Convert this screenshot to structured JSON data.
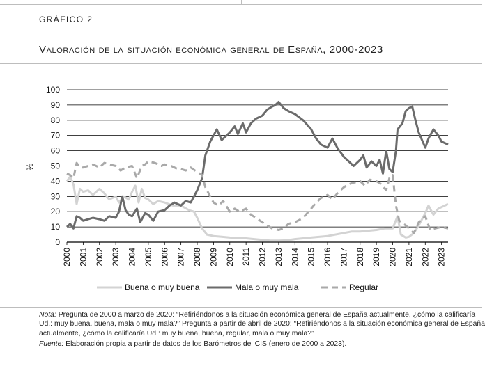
{
  "header": {
    "label": "Gráfico 2",
    "title": "Valoración de la situación económica general de España, 2000-2023"
  },
  "note": {
    "nota_label": "Nota:",
    "nota_text": " Pregunta de 2000 a marzo de 2020: “Refiriéndonos a la situación económica general de España actualmente, ¿cómo la calificaría Ud.: muy buena, buena, mala o muy mala?” Pregunta a partir de abril de 2020: “Refiriéndonos a la situación económica general de España actualmente, ¿cómo la calificaría Ud.: muy buena, buena, regular, mala o muy mala?”",
    "fuente_label": "Fuente:",
    "fuente_text": " Elaboración propia a partir de datos de los Barómetros del CIS (enero de 2000 a 2023)."
  },
  "chart_data": {
    "type": "line",
    "ylabel": "%",
    "xlabel": "",
    "ylim": [
      0,
      100
    ],
    "yticks": [
      0,
      10,
      20,
      30,
      40,
      50,
      60,
      70,
      80,
      90,
      100
    ],
    "xlim": [
      2000,
      2023.4
    ],
    "xticks": [
      "2000",
      "2001",
      "2002",
      "2003",
      "2004",
      "2005",
      "2006",
      "2007",
      "2008",
      "2009",
      "2010",
      "2011",
      "2012",
      "2013",
      "2014",
      "2015",
      "2016",
      "2017",
      "2018",
      "2019",
      "2020",
      "2021",
      "2022",
      "2023"
    ],
    "grid": "horizontal",
    "legend_position": "bottom",
    "colors": {
      "buena": "#d3d3d3",
      "mala": "#6b6b6b",
      "regular": "#a9a9a9",
      "grid": "#000000"
    },
    "series": [
      {
        "name": "Buena o muy buena",
        "style": "solid-light",
        "points": [
          [
            2000,
            40
          ],
          [
            2000.2,
            43
          ],
          [
            2000.4,
            38
          ],
          [
            2000.6,
            25
          ],
          [
            2000.8,
            35
          ],
          [
            2001,
            33
          ],
          [
            2001.3,
            34
          ],
          [
            2001.6,
            31
          ],
          [
            2002,
            35
          ],
          [
            2002.3,
            32
          ],
          [
            2002.6,
            28
          ],
          [
            2003,
            30
          ],
          [
            2003.2,
            26
          ],
          [
            2003.5,
            30
          ],
          [
            2003.8,
            28
          ],
          [
            2004,
            33
          ],
          [
            2004.2,
            37
          ],
          [
            2004.4,
            26
          ],
          [
            2004.6,
            35
          ],
          [
            2004.8,
            29
          ],
          [
            2005,
            28
          ],
          [
            2005.3,
            25
          ],
          [
            2005.6,
            27
          ],
          [
            2006,
            26
          ],
          [
            2006.5,
            24
          ],
          [
            2007,
            24
          ],
          [
            2007.5,
            21
          ],
          [
            2007.8,
            20
          ],
          [
            2008,
            16
          ],
          [
            2008.3,
            9
          ],
          [
            2008.6,
            5
          ],
          [
            2009,
            4
          ],
          [
            2009.5,
            3.5
          ],
          [
            2010,
            3
          ],
          [
            2011,
            2.5
          ],
          [
            2012,
            1.5
          ],
          [
            2012.5,
            1
          ],
          [
            2013,
            1
          ],
          [
            2013.5,
            1.2
          ],
          [
            2014,
            2
          ],
          [
            2015,
            3
          ],
          [
            2016,
            4
          ],
          [
            2017,
            6
          ],
          [
            2017.5,
            7
          ],
          [
            2018,
            7
          ],
          [
            2019,
            8
          ],
          [
            2019.5,
            9
          ],
          [
            2020,
            9
          ],
          [
            2020.3,
            17
          ],
          [
            2020.5,
            5
          ],
          [
            2020.8,
            3
          ],
          [
            2021,
            3.5
          ],
          [
            2021.3,
            6
          ],
          [
            2021.6,
            11
          ],
          [
            2022,
            19
          ],
          [
            2022.2,
            24
          ],
          [
            2022.5,
            18
          ],
          [
            2022.8,
            22
          ],
          [
            2023,
            23
          ],
          [
            2023.4,
            25
          ]
        ]
      },
      {
        "name": "Mala o muy mala",
        "style": "solid-dark",
        "points": [
          [
            2000,
            10
          ],
          [
            2000.2,
            12
          ],
          [
            2000.4,
            9
          ],
          [
            2000.6,
            17
          ],
          [
            2000.8,
            16
          ],
          [
            2001,
            14
          ],
          [
            2001.3,
            15
          ],
          [
            2001.6,
            16
          ],
          [
            2002,
            15
          ],
          [
            2002.3,
            14
          ],
          [
            2002.6,
            17
          ],
          [
            2003,
            16
          ],
          [
            2003.2,
            20
          ],
          [
            2003.4,
            30
          ],
          [
            2003.6,
            21
          ],
          [
            2003.8,
            18
          ],
          [
            2004,
            17
          ],
          [
            2004.3,
            22
          ],
          [
            2004.5,
            13
          ],
          [
            2004.8,
            19
          ],
          [
            2005,
            18
          ],
          [
            2005.3,
            14
          ],
          [
            2005.6,
            20
          ],
          [
            2006,
            21
          ],
          [
            2006.3,
            24
          ],
          [
            2006.6,
            26
          ],
          [
            2007,
            24
          ],
          [
            2007.3,
            27
          ],
          [
            2007.6,
            26
          ],
          [
            2008,
            34
          ],
          [
            2008.3,
            42
          ],
          [
            2008.5,
            57
          ],
          [
            2008.8,
            66
          ],
          [
            2009,
            70
          ],
          [
            2009.2,
            74
          ],
          [
            2009.5,
            67
          ],
          [
            2010,
            72
          ],
          [
            2010.3,
            76
          ],
          [
            2010.5,
            71
          ],
          [
            2010.8,
            78
          ],
          [
            2011,
            72
          ],
          [
            2011.3,
            78
          ],
          [
            2011.6,
            81
          ],
          [
            2012,
            83
          ],
          [
            2012.3,
            87
          ],
          [
            2012.6,
            89
          ],
          [
            2012.8,
            90
          ],
          [
            2013,
            92
          ],
          [
            2013.3,
            88
          ],
          [
            2013.6,
            86
          ],
          [
            2014,
            84
          ],
          [
            2014.5,
            80
          ],
          [
            2015,
            74
          ],
          [
            2015.3,
            68
          ],
          [
            2015.6,
            64
          ],
          [
            2016,
            62
          ],
          [
            2016.3,
            68
          ],
          [
            2016.6,
            62
          ],
          [
            2017,
            56
          ],
          [
            2017.3,
            53
          ],
          [
            2017.6,
            50
          ],
          [
            2018,
            54
          ],
          [
            2018.2,
            57
          ],
          [
            2018.4,
            49
          ],
          [
            2018.7,
            53
          ],
          [
            2019,
            50
          ],
          [
            2019.2,
            54
          ],
          [
            2019.4,
            45
          ],
          [
            2019.6,
            60
          ],
          [
            2019.8,
            48
          ],
          [
            2020,
            46
          ],
          [
            2020.2,
            60
          ],
          [
            2020.3,
            74
          ],
          [
            2020.6,
            78
          ],
          [
            2020.8,
            86
          ],
          [
            2021,
            88
          ],
          [
            2021.2,
            89
          ],
          [
            2021.4,
            80
          ],
          [
            2021.6,
            72
          ],
          [
            2022,
            62
          ],
          [
            2022.2,
            68
          ],
          [
            2022.5,
            74
          ],
          [
            2022.8,
            70
          ],
          [
            2023,
            66
          ],
          [
            2023.4,
            64
          ]
        ]
      },
      {
        "name": "Regular",
        "style": "dashed",
        "points": [
          [
            2000,
            45
          ],
          [
            2000.2,
            44
          ],
          [
            2000.4,
            42
          ],
          [
            2000.6,
            52
          ],
          [
            2000.8,
            49
          ],
          [
            2001,
            49
          ],
          [
            2001.3,
            50
          ],
          [
            2001.6,
            51
          ],
          [
            2002,
            49
          ],
          [
            2002.3,
            52
          ],
          [
            2002.6,
            51
          ],
          [
            2003,
            50
          ],
          [
            2003.3,
            47
          ],
          [
            2003.6,
            49
          ],
          [
            2004,
            50
          ],
          [
            2004.3,
            42
          ],
          [
            2004.6,
            50
          ],
          [
            2004.8,
            51
          ],
          [
            2005,
            53
          ],
          [
            2005.4,
            52
          ],
          [
            2005.8,
            50
          ],
          [
            2006,
            51
          ],
          [
            2006.4,
            50
          ],
          [
            2006.8,
            48
          ],
          [
            2007,
            48
          ],
          [
            2007.3,
            47
          ],
          [
            2007.6,
            49
          ],
          [
            2008,
            46
          ],
          [
            2008.3,
            44
          ],
          [
            2008.5,
            36
          ],
          [
            2008.8,
            30
          ],
          [
            2009,
            26
          ],
          [
            2009.3,
            24
          ],
          [
            2009.6,
            27
          ],
          [
            2010,
            20
          ],
          [
            2010.3,
            22
          ],
          [
            2010.6,
            20
          ],
          [
            2011,
            22
          ],
          [
            2011.3,
            18
          ],
          [
            2011.6,
            16
          ],
          [
            2012,
            13
          ],
          [
            2012.3,
            11
          ],
          [
            2012.6,
            9
          ],
          [
            2013,
            8
          ],
          [
            2013.3,
            9
          ],
          [
            2013.6,
            12
          ],
          [
            2014,
            13
          ],
          [
            2014.5,
            16
          ],
          [
            2015,
            22
          ],
          [
            2015.3,
            26
          ],
          [
            2015.6,
            29
          ],
          [
            2016,
            31
          ],
          [
            2016.3,
            28
          ],
          [
            2016.6,
            32
          ],
          [
            2017,
            36
          ],
          [
            2017.3,
            38
          ],
          [
            2017.6,
            39
          ],
          [
            2018,
            40
          ],
          [
            2018.3,
            37
          ],
          [
            2018.6,
            41
          ],
          [
            2019,
            40
          ],
          [
            2019.3,
            38
          ],
          [
            2019.6,
            34
          ],
          [
            2019.8,
            42
          ],
          [
            2020,
            44
          ],
          [
            2020.2,
            24
          ],
          [
            2020.4,
            14
          ],
          [
            2020.8,
            11
          ],
          [
            2021,
            9
          ],
          [
            2021.3,
            6
          ],
          [
            2021.6,
            13
          ],
          [
            2022,
            17
          ],
          [
            2022.3,
            8
          ],
          [
            2022.6,
            9
          ],
          [
            2023,
            10
          ],
          [
            2023.4,
            9
          ]
        ]
      }
    ]
  }
}
